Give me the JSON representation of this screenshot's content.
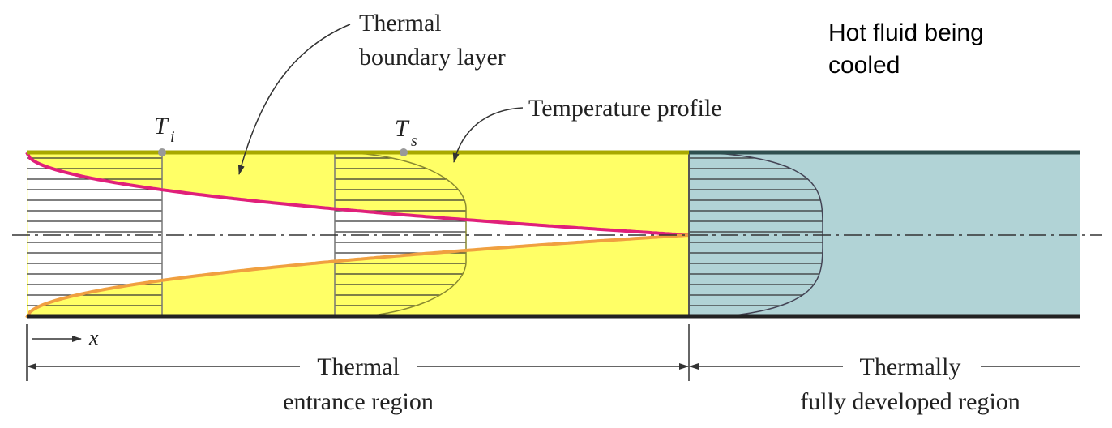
{
  "labels": {
    "boundary_layer": [
      "Thermal",
      "boundary layer"
    ],
    "note": [
      "Hot fluid being",
      "cooled"
    ],
    "temperature_profile": "Temperature profile",
    "inlet_temp": {
      "symbol": "T",
      "subscript": "i"
    },
    "surface_temp": {
      "symbol": "T",
      "subscript": "s"
    },
    "axis": "x",
    "entrance_region": [
      "Thermal",
      "entrance region"
    ],
    "developed_region": [
      "Thermally",
      "fully developed region"
    ]
  }
}
